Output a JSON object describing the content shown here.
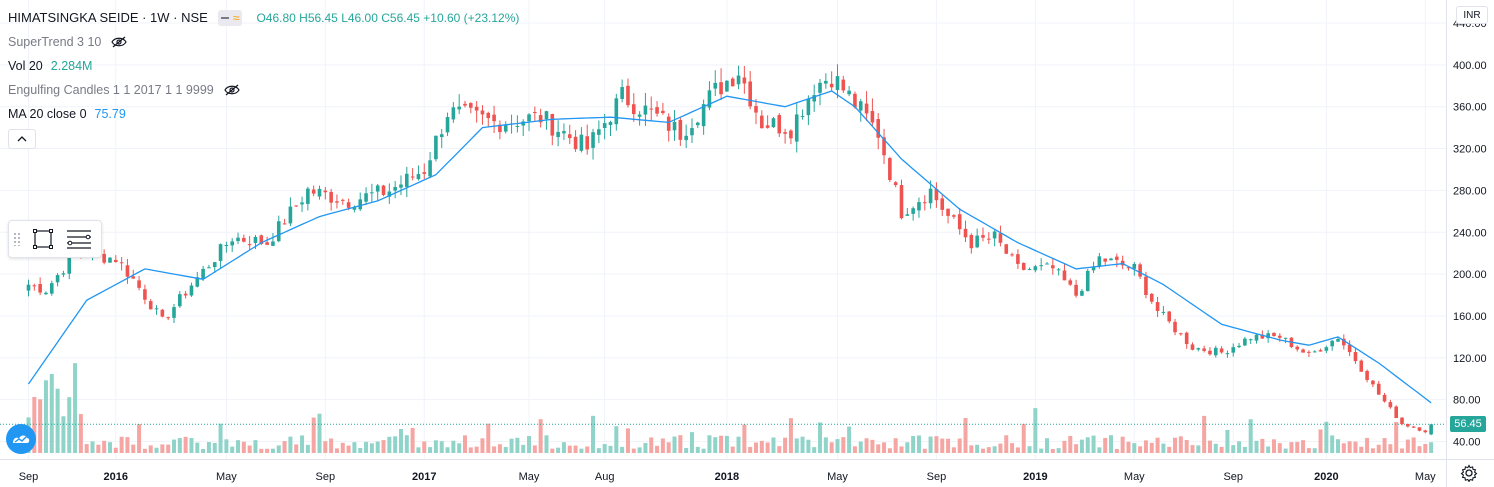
{
  "header": {
    "symbol": "HIMATSINGKA SEIDE · 1W · NSE",
    "open": "O46.80",
    "high": "H56.45",
    "low": "L46.00",
    "close": "C56.45",
    "change": "+10.60 (+23.12%)"
  },
  "indicators": {
    "supertrend": "SuperTrend 3 10",
    "vol_label": "Vol 20",
    "vol_value": "2.284M",
    "engulfing": "Engulfing Candles 1 1 2017 1 1 9999",
    "ma_label": "MA 20 close 0",
    "ma_value": "75.79"
  },
  "currency": "INR",
  "last_price": "56.45",
  "colors": {
    "up": "#26a69a",
    "down": "#ef5350",
    "ma": "#2196f3",
    "vol_up": "#8fd3c9",
    "vol_down": "#f5a6a3",
    "grid": "#f0f3fa"
  },
  "icons": [
    "eye-off-icon",
    "collapse-chevron-icon",
    "rectangle-tool-icon",
    "lines-tool-icon",
    "tradingview-logo-icon",
    "settings-gear-icon"
  ],
  "chart_data": {
    "type": "candlestick",
    "y_ticks": [
      "440.00",
      "400.00",
      "360.00",
      "320.00",
      "280.00",
      "240.00",
      "200.00",
      "160.00",
      "120.00",
      "80.00",
      "40.00"
    ],
    "ylim": [
      29,
      462
    ],
    "x_labels": [
      "Sep",
      "2016",
      "May",
      "Sep",
      "2017",
      "May",
      "Aug",
      "2018",
      "May",
      "Sep",
      "2019",
      "May",
      "Sep",
      "2020",
      "May"
    ],
    "x_label_weeks": [
      0,
      15,
      34,
      51,
      68,
      86,
      99,
      120,
      139,
      156,
      173,
      190,
      207,
      223,
      240
    ],
    "close_anchors": [
      [
        0,
        190
      ],
      [
        3,
        185
      ],
      [
        8,
        220
      ],
      [
        15,
        215
      ],
      [
        18,
        195
      ],
      [
        23,
        155
      ],
      [
        28,
        190
      ],
      [
        35,
        235
      ],
      [
        41,
        230
      ],
      [
        48,
        280
      ],
      [
        55,
        270
      ],
      [
        62,
        280
      ],
      [
        68,
        300
      ],
      [
        72,
        355
      ],
      [
        80,
        345
      ],
      [
        88,
        350
      ],
      [
        96,
        320
      ],
      [
        102,
        370
      ],
      [
        108,
        350
      ],
      [
        112,
        335
      ],
      [
        118,
        375
      ],
      [
        122,
        395
      ],
      [
        126,
        345
      ],
      [
        131,
        340
      ],
      [
        135,
        380
      ],
      [
        138,
        390
      ],
      [
        141,
        370
      ],
      [
        146,
        335
      ],
      [
        150,
        260
      ],
      [
        155,
        280
      ],
      [
        158,
        255
      ],
      [
        162,
        230
      ],
      [
        166,
        235
      ],
      [
        170,
        205
      ],
      [
        176,
        205
      ],
      [
        180,
        180
      ],
      [
        184,
        215
      ],
      [
        190,
        205
      ],
      [
        194,
        165
      ],
      [
        200,
        130
      ],
      [
        205,
        125
      ],
      [
        210,
        140
      ],
      [
        215,
        140
      ],
      [
        220,
        122
      ],
      [
        225,
        140
      ],
      [
        228,
        118
      ],
      [
        232,
        85
      ],
      [
        236,
        57
      ],
      [
        240,
        50
      ],
      [
        241,
        56.45
      ]
    ],
    "ma_anchors": [
      [
        0,
        95
      ],
      [
        10,
        175
      ],
      [
        20,
        205
      ],
      [
        30,
        195
      ],
      [
        40,
        230
      ],
      [
        50,
        255
      ],
      [
        60,
        270
      ],
      [
        70,
        295
      ],
      [
        78,
        340
      ],
      [
        90,
        348
      ],
      [
        100,
        350
      ],
      [
        110,
        345
      ],
      [
        120,
        370
      ],
      [
        130,
        360
      ],
      [
        138,
        375
      ],
      [
        142,
        360
      ],
      [
        150,
        310
      ],
      [
        160,
        262
      ],
      [
        170,
        230
      ],
      [
        180,
        205
      ],
      [
        188,
        210
      ],
      [
        195,
        190
      ],
      [
        205,
        152
      ],
      [
        215,
        137
      ],
      [
        220,
        132
      ],
      [
        225,
        140
      ],
      [
        232,
        115
      ],
      [
        241,
        77
      ]
    ]
  }
}
